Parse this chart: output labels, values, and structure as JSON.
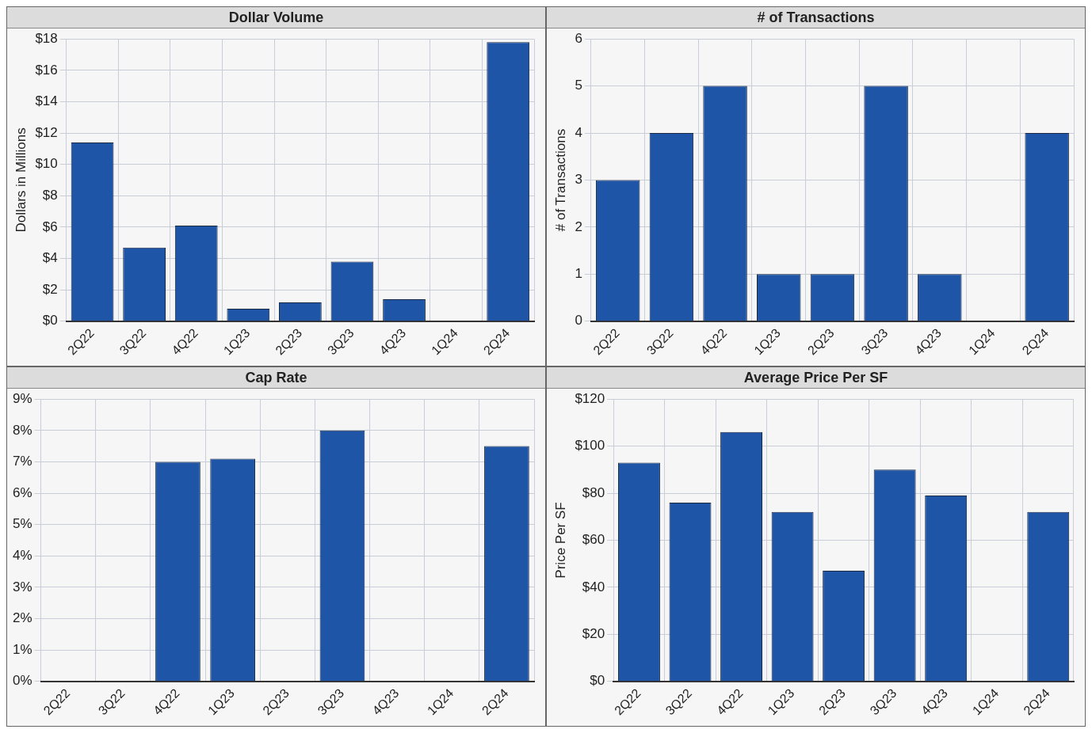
{
  "chart_data": [
    {
      "type": "bar",
      "title": "Dollar Volume",
      "ylabel": "Dollars in Millions",
      "categories": [
        "2Q22",
        "3Q22",
        "4Q22",
        "1Q23",
        "2Q23",
        "3Q23",
        "4Q23",
        "1Q24",
        "2Q24"
      ],
      "values": [
        11.4,
        4.7,
        6.1,
        0.8,
        1.2,
        3.8,
        1.4,
        0,
        17.8
      ],
      "color": "#1f55a6",
      "ylim": [
        0,
        18
      ],
      "yticks": [
        {
          "value": 0,
          "label": "$0"
        },
        {
          "value": 2,
          "label": "$2"
        },
        {
          "value": 4,
          "label": "$4"
        },
        {
          "value": 6,
          "label": "$6"
        },
        {
          "value": 8,
          "label": "$8"
        },
        {
          "value": 10,
          "label": "$10"
        },
        {
          "value": 12,
          "label": "$12"
        },
        {
          "value": 14,
          "label": "$14"
        },
        {
          "value": 16,
          "label": "$16"
        },
        {
          "value": 18,
          "label": "$18"
        }
      ],
      "grid": true
    },
    {
      "type": "bar",
      "title": "# of Transactions",
      "ylabel": "# of Transactions",
      "categories": [
        "2Q22",
        "3Q22",
        "4Q22",
        "1Q23",
        "2Q23",
        "3Q23",
        "4Q23",
        "1Q24",
        "2Q24"
      ],
      "values": [
        3,
        4,
        5,
        1,
        1,
        5,
        1,
        0,
        4
      ],
      "color": "#1f55a6",
      "ylim": [
        0,
        6
      ],
      "yticks": [
        0,
        1,
        2,
        3,
        4,
        5,
        6
      ],
      "grid": true
    },
    {
      "type": "bar",
      "title": "Cap Rate",
      "categories": [
        "2Q22",
        "3Q22",
        "4Q22",
        "1Q23",
        "2Q23",
        "3Q23",
        "4Q23",
        "1Q24",
        "2Q24"
      ],
      "values": [
        0,
        0,
        7.0,
        7.1,
        0,
        8.0,
        0,
        0,
        7.5
      ],
      "color": "#1f55a6",
      "ylim": [
        0,
        9
      ],
      "yticks": [
        {
          "value": 0,
          "label": "0%"
        },
        {
          "value": 1,
          "label": "1%"
        },
        {
          "value": 2,
          "label": "2%"
        },
        {
          "value": 3,
          "label": "3%"
        },
        {
          "value": 4,
          "label": "4%"
        },
        {
          "value": 5,
          "label": "5%"
        },
        {
          "value": 6,
          "label": "6%"
        },
        {
          "value": 7,
          "label": "7%"
        },
        {
          "value": 8,
          "label": "8%"
        },
        {
          "value": 9,
          "label": "9%"
        }
      ],
      "grid": true
    },
    {
      "type": "bar",
      "title": "Average Price Per SF",
      "ylabel": "Price Per SF",
      "categories": [
        "2Q22",
        "3Q22",
        "4Q22",
        "1Q23",
        "2Q23",
        "3Q23",
        "4Q23",
        "1Q24",
        "2Q24"
      ],
      "values": [
        93,
        76,
        106,
        72,
        47,
        90,
        79,
        0,
        72
      ],
      "color": "#1f55a6",
      "ylim": [
        0,
        120
      ],
      "yticks": [
        {
          "value": 0,
          "label": "$0"
        },
        {
          "value": 20,
          "label": "$20"
        },
        {
          "value": 40,
          "label": "$40"
        },
        {
          "value": 60,
          "label": "$60"
        },
        {
          "value": 80,
          "label": "$80"
        },
        {
          "value": 100,
          "label": "$100"
        },
        {
          "value": 120,
          "label": "$120"
        }
      ],
      "grid": true
    }
  ]
}
